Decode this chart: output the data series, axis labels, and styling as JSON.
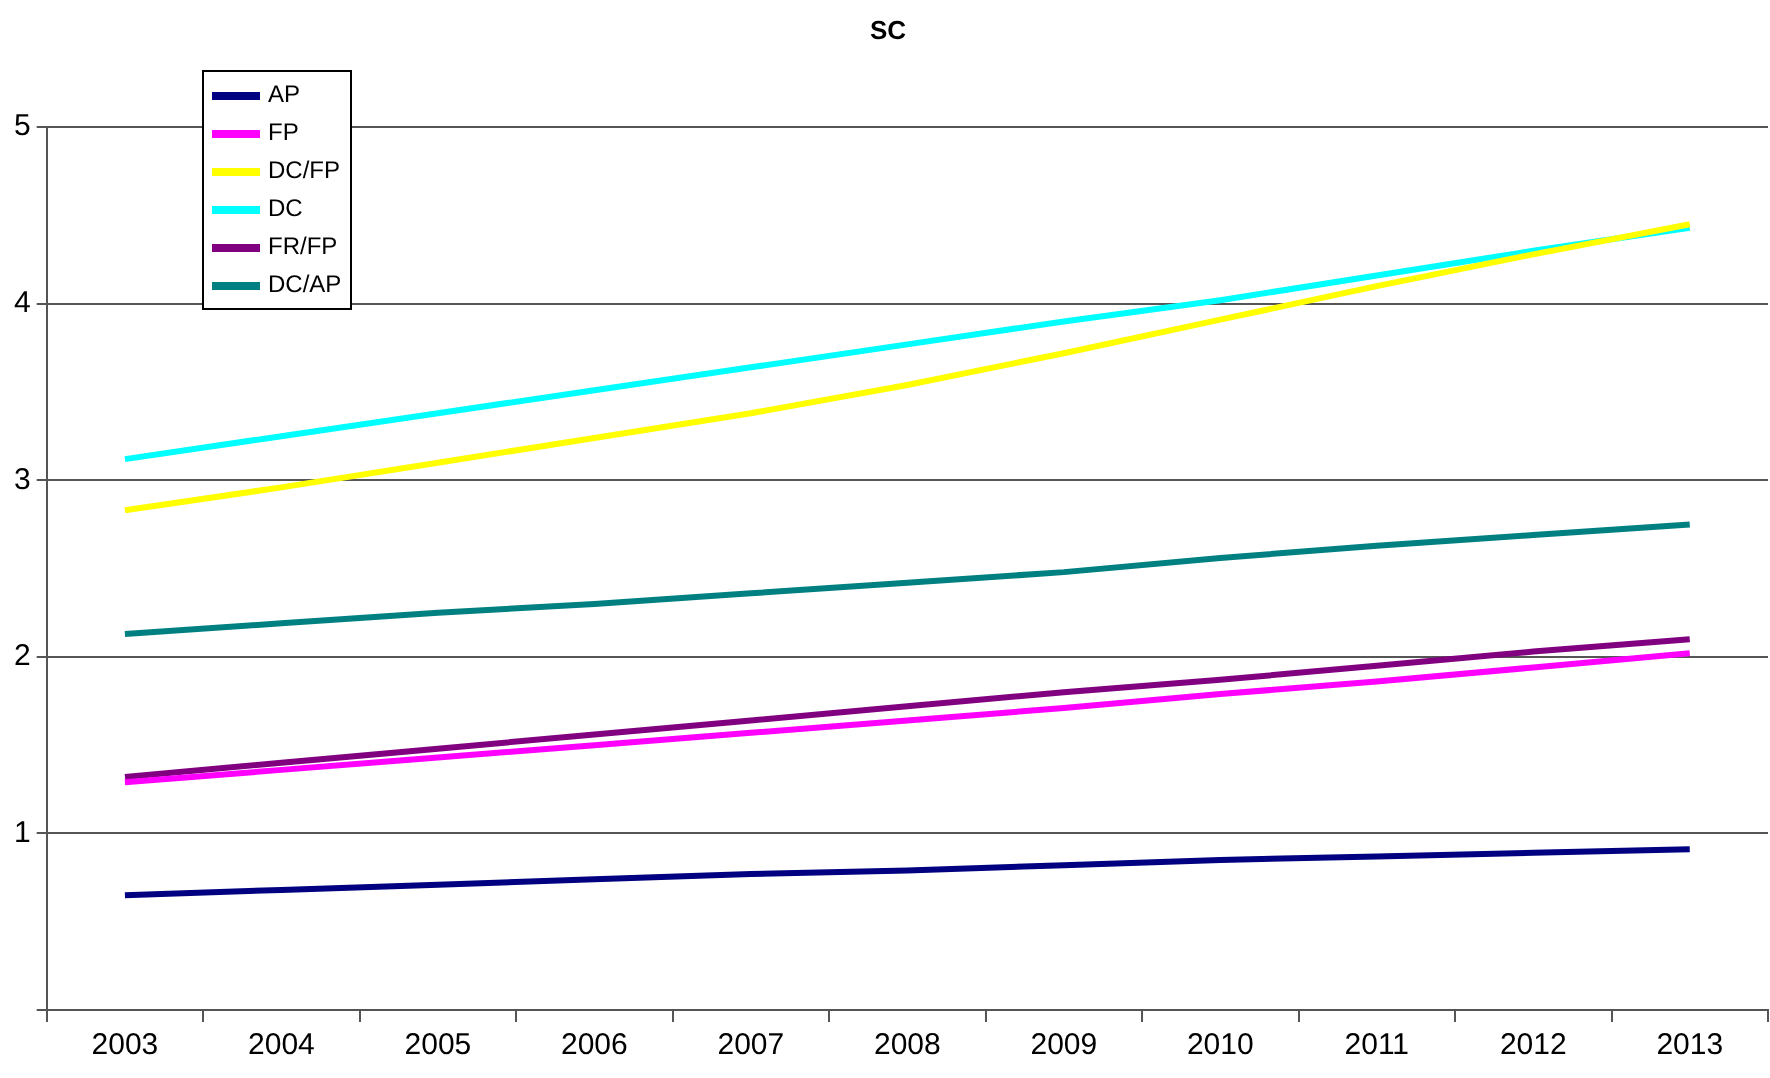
{
  "chart_data": {
    "type": "line",
    "title": "SC",
    "categories": [
      "2003",
      "2004",
      "2005",
      "2006",
      "2007",
      "2008",
      "2009",
      "2010",
      "2011",
      "2012",
      "2013"
    ],
    "series": [
      {
        "name": "AP",
        "color": "#000080",
        "values": [
          0.65,
          0.68,
          0.71,
          0.74,
          0.77,
          0.79,
          0.82,
          0.85,
          0.87,
          0.89,
          0.91
        ]
      },
      {
        "name": "FP",
        "color": "#ff00ff",
        "values": [
          1.29,
          1.36,
          1.43,
          1.5,
          1.57,
          1.64,
          1.71,
          1.79,
          1.86,
          1.94,
          2.02
        ]
      },
      {
        "name": "DC/FP",
        "color": "#ffff00",
        "values": [
          2.83,
          2.96,
          3.1,
          3.24,
          3.38,
          3.54,
          3.72,
          3.91,
          4.1,
          4.28,
          4.45
        ]
      },
      {
        "name": "DC",
        "color": "#00ffff",
        "values": [
          3.12,
          3.25,
          3.38,
          3.51,
          3.64,
          3.77,
          3.9,
          4.02,
          4.16,
          4.3,
          4.43
        ]
      },
      {
        "name": "FR/FP",
        "color": "#800080",
        "values": [
          1.32,
          1.4,
          1.48,
          1.56,
          1.64,
          1.72,
          1.8,
          1.87,
          1.95,
          2.03,
          2.1
        ]
      },
      {
        "name": "DC/AP",
        "color": "#008080",
        "values": [
          2.13,
          2.19,
          2.25,
          2.3,
          2.36,
          2.42,
          2.48,
          2.56,
          2.63,
          2.69,
          2.75
        ]
      }
    ],
    "ylim": [
      0,
      5
    ],
    "yticks": [
      {
        "value": 0,
        "label": null
      },
      1,
      2,
      3,
      4,
      5
    ],
    "grid": "y",
    "legend": "top left",
    "marker": "none",
    "line_style": "solid"
  }
}
